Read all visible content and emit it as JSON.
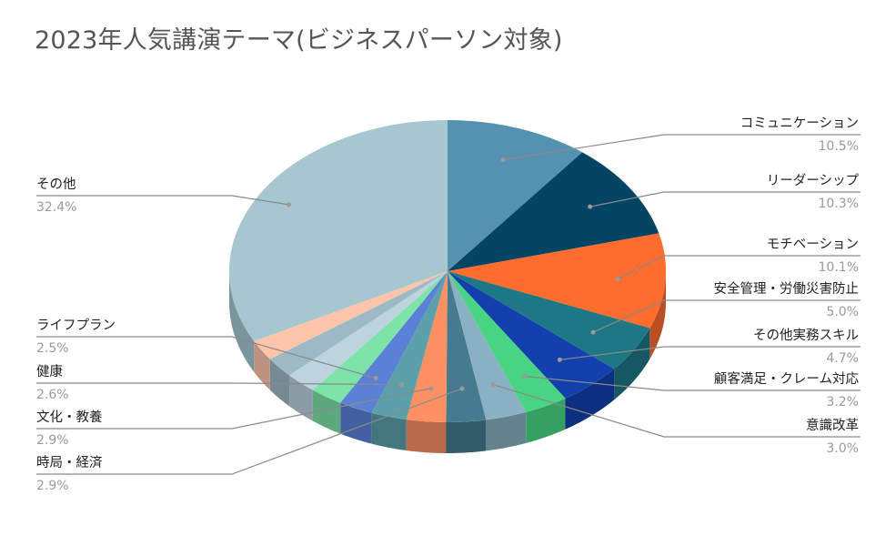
{
  "chart_data": {
    "type": "pie",
    "title": "2023年人気講演テーマ(ビジネスパーソン対象)",
    "slices": [
      {
        "label": "コミュニケーション",
        "percent_label": "10.5%",
        "value": 10.5,
        "color": "#5591b0",
        "side_color": "#3f6d86"
      },
      {
        "label": "リーダーシップ",
        "percent_label": "10.3%",
        "value": 10.3,
        "color": "#034563",
        "side_color": "#02324a"
      },
      {
        "label": "モチベーション",
        "percent_label": "10.1%",
        "value": 10.1,
        "color": "#fe6c2e",
        "side_color": "#b94f22"
      },
      {
        "label": "安全管理・労働災害防止",
        "percent_label": "5.0%",
        "value": 5.0,
        "color": "#1d7785",
        "side_color": "#155863"
      },
      {
        "label": "その他実務スキル",
        "percent_label": "4.7%",
        "value": 4.7,
        "color": "#1240ad",
        "side_color": "#0d2f80"
      },
      {
        "label": "顧客満足・クレーム対応",
        "percent_label": "3.2%",
        "value": 3.2,
        "color": "#49d483",
        "side_color": "#36a062"
      },
      {
        "label": "意識改革",
        "percent_label": "3.0%",
        "value": 3.0,
        "color": "#8ab0c4",
        "side_color": "#65828f"
      },
      {
        "label": "時局・経済",
        "percent_label": "2.9%",
        "value": 2.9,
        "color": "#457b8e",
        "side_color": "#335b69"
      },
      {
        "label": "文化・教養",
        "percent_label": "2.9%",
        "value": 2.9,
        "color": "#fe9064",
        "side_color": "#b96a4a"
      },
      {
        "label": "健康",
        "percent_label": "2.6%",
        "value": 2.6,
        "color": "#5ca0aa",
        "side_color": "#44767e"
      },
      {
        "label": "ライフプラン",
        "percent_label": "2.5%",
        "value": 2.5,
        "color": "#5b81d6",
        "side_color": "#4360a0"
      },
      {
        "label": "",
        "percent_label": "",
        "value": 2.4,
        "color": "#7ee3a8",
        "side_color": "#5da87c"
      },
      {
        "label": "",
        "percent_label": "",
        "value": 2.3,
        "color": "#bdd3de",
        "side_color": "#8b9ca4"
      },
      {
        "label": "",
        "percent_label": "",
        "value": 2.2,
        "color": "#9eb9c6",
        "side_color": "#768a93"
      },
      {
        "label": "",
        "percent_label": "",
        "value": 2.2,
        "color": "#ffc5aa",
        "side_color": "#bd927e"
      },
      {
        "label": "その他",
        "percent_label": "32.4%",
        "value": 32.4,
        "color": "#a6c7cf",
        "side_color": "#7a959c"
      }
    ],
    "legend": "none",
    "label_placement": "outside-with-leader-lines"
  }
}
